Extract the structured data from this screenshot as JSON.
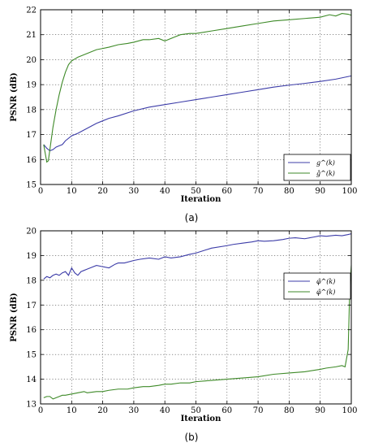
{
  "chart_data": [
    {
      "type": "line",
      "caption": "(a)",
      "xlabel": "Iteration",
      "ylabel": "PSNR (dB)",
      "xlim": [
        0,
        100
      ],
      "ylim": [
        15,
        22
      ],
      "xticks": [
        "0",
        "10",
        "20",
        "30",
        "40",
        "50",
        "60",
        "70",
        "80",
        "90",
        "100"
      ],
      "yticks": [
        "15",
        "16",
        "17",
        "18",
        "19",
        "20",
        "21",
        "22"
      ],
      "grid": true,
      "legend_position": "bottom-right",
      "series": [
        {
          "name": "g^(k)",
          "color": "#3c3ca8",
          "x": [
            1,
            2,
            3,
            4,
            5,
            6,
            7,
            8,
            10,
            12,
            15,
            18,
            20,
            22,
            25,
            30,
            35,
            40,
            45,
            50,
            55,
            60,
            65,
            70,
            75,
            80,
            85,
            90,
            95,
            100
          ],
          "y": [
            16.6,
            16.45,
            16.35,
            16.4,
            16.5,
            16.55,
            16.6,
            16.75,
            16.95,
            17.05,
            17.25,
            17.45,
            17.55,
            17.65,
            17.75,
            17.95,
            18.1,
            18.2,
            18.3,
            18.4,
            18.5,
            18.6,
            18.7,
            18.8,
            18.9,
            18.98,
            19.05,
            19.13,
            19.22,
            19.35
          ]
        },
        {
          "name": "ĝ^(k)",
          "color": "#3e8a28",
          "x": [
            1,
            2,
            2.5,
            3,
            4,
            5,
            6,
            7,
            8,
            9,
            10,
            12,
            15,
            18,
            20,
            22,
            25,
            28,
            30,
            33,
            35,
            38,
            40,
            43,
            45,
            48,
            50,
            55,
            60,
            65,
            70,
            75,
            80,
            85,
            90,
            93,
            95,
            97,
            99,
            100
          ],
          "y": [
            16.6,
            15.9,
            15.95,
            16.4,
            17.3,
            18.0,
            18.6,
            19.1,
            19.5,
            19.8,
            19.95,
            20.1,
            20.25,
            20.4,
            20.45,
            20.5,
            20.6,
            20.65,
            20.7,
            20.8,
            20.8,
            20.85,
            20.75,
            20.9,
            21.0,
            21.05,
            21.05,
            21.15,
            21.25,
            21.35,
            21.45,
            21.55,
            21.6,
            21.65,
            21.7,
            21.8,
            21.75,
            21.85,
            21.82,
            21.78
          ]
        }
      ]
    },
    {
      "type": "line",
      "caption": "(b)",
      "xlabel": "Iteration",
      "ylabel": "PSNR (dB)",
      "xlim": [
        0,
        100
      ],
      "ylim": [
        13,
        20
      ],
      "xticks": [
        "0",
        "10",
        "20",
        "30",
        "40",
        "50",
        "60",
        "70",
        "80",
        "90",
        "100"
      ],
      "yticks": [
        "13",
        "14",
        "15",
        "16",
        "17",
        "18",
        "19",
        "20"
      ],
      "grid": true,
      "legend_position": "right",
      "series": [
        {
          "name": "φ̂^(k)",
          "color": "#3c3ca8",
          "x": [
            1,
            2,
            3,
            4,
            5,
            6,
            7,
            8,
            9,
            10,
            11,
            12,
            13,
            14,
            15,
            16,
            18,
            20,
            22,
            24,
            25,
            27,
            30,
            32,
            35,
            38,
            40,
            42,
            45,
            48,
            50,
            55,
            60,
            62,
            65,
            68,
            70,
            72,
            75,
            78,
            80,
            82,
            85,
            88,
            90,
            92,
            95,
            97,
            99,
            100
          ],
          "y": [
            18.05,
            18.15,
            18.1,
            18.2,
            18.25,
            18.2,
            18.3,
            18.35,
            18.2,
            18.5,
            18.3,
            18.2,
            18.35,
            18.4,
            18.45,
            18.5,
            18.6,
            18.55,
            18.5,
            18.65,
            18.7,
            18.7,
            18.8,
            18.85,
            18.9,
            18.85,
            18.95,
            18.9,
            18.95,
            19.05,
            19.1,
            19.3,
            19.4,
            19.45,
            19.5,
            19.55,
            19.6,
            19.58,
            19.6,
            19.65,
            19.7,
            19.72,
            19.68,
            19.75,
            19.8,
            19.78,
            19.82,
            19.8,
            19.85,
            19.88
          ]
        },
        {
          "name": "φ̂^(k)",
          "color": "#3e8a28",
          "x": [
            1,
            2,
            3,
            4,
            5,
            6,
            7,
            8,
            10,
            12,
            14,
            15,
            18,
            20,
            22,
            25,
            28,
            30,
            33,
            35,
            38,
            40,
            42,
            45,
            48,
            50,
            55,
            60,
            65,
            70,
            75,
            80,
            85,
            90,
            92,
            95,
            97,
            98,
            99,
            99.5,
            100
          ],
          "y": [
            13.25,
            13.3,
            13.3,
            13.2,
            13.25,
            13.3,
            13.35,
            13.35,
            13.4,
            13.45,
            13.5,
            13.45,
            13.5,
            13.5,
            13.55,
            13.6,
            13.6,
            13.65,
            13.7,
            13.7,
            13.75,
            13.8,
            13.8,
            13.85,
            13.85,
            13.9,
            13.95,
            14.0,
            14.05,
            14.1,
            14.2,
            14.25,
            14.3,
            14.4,
            14.45,
            14.5,
            14.55,
            14.5,
            15.2,
            17.6,
            18.6
          ]
        }
      ]
    }
  ]
}
